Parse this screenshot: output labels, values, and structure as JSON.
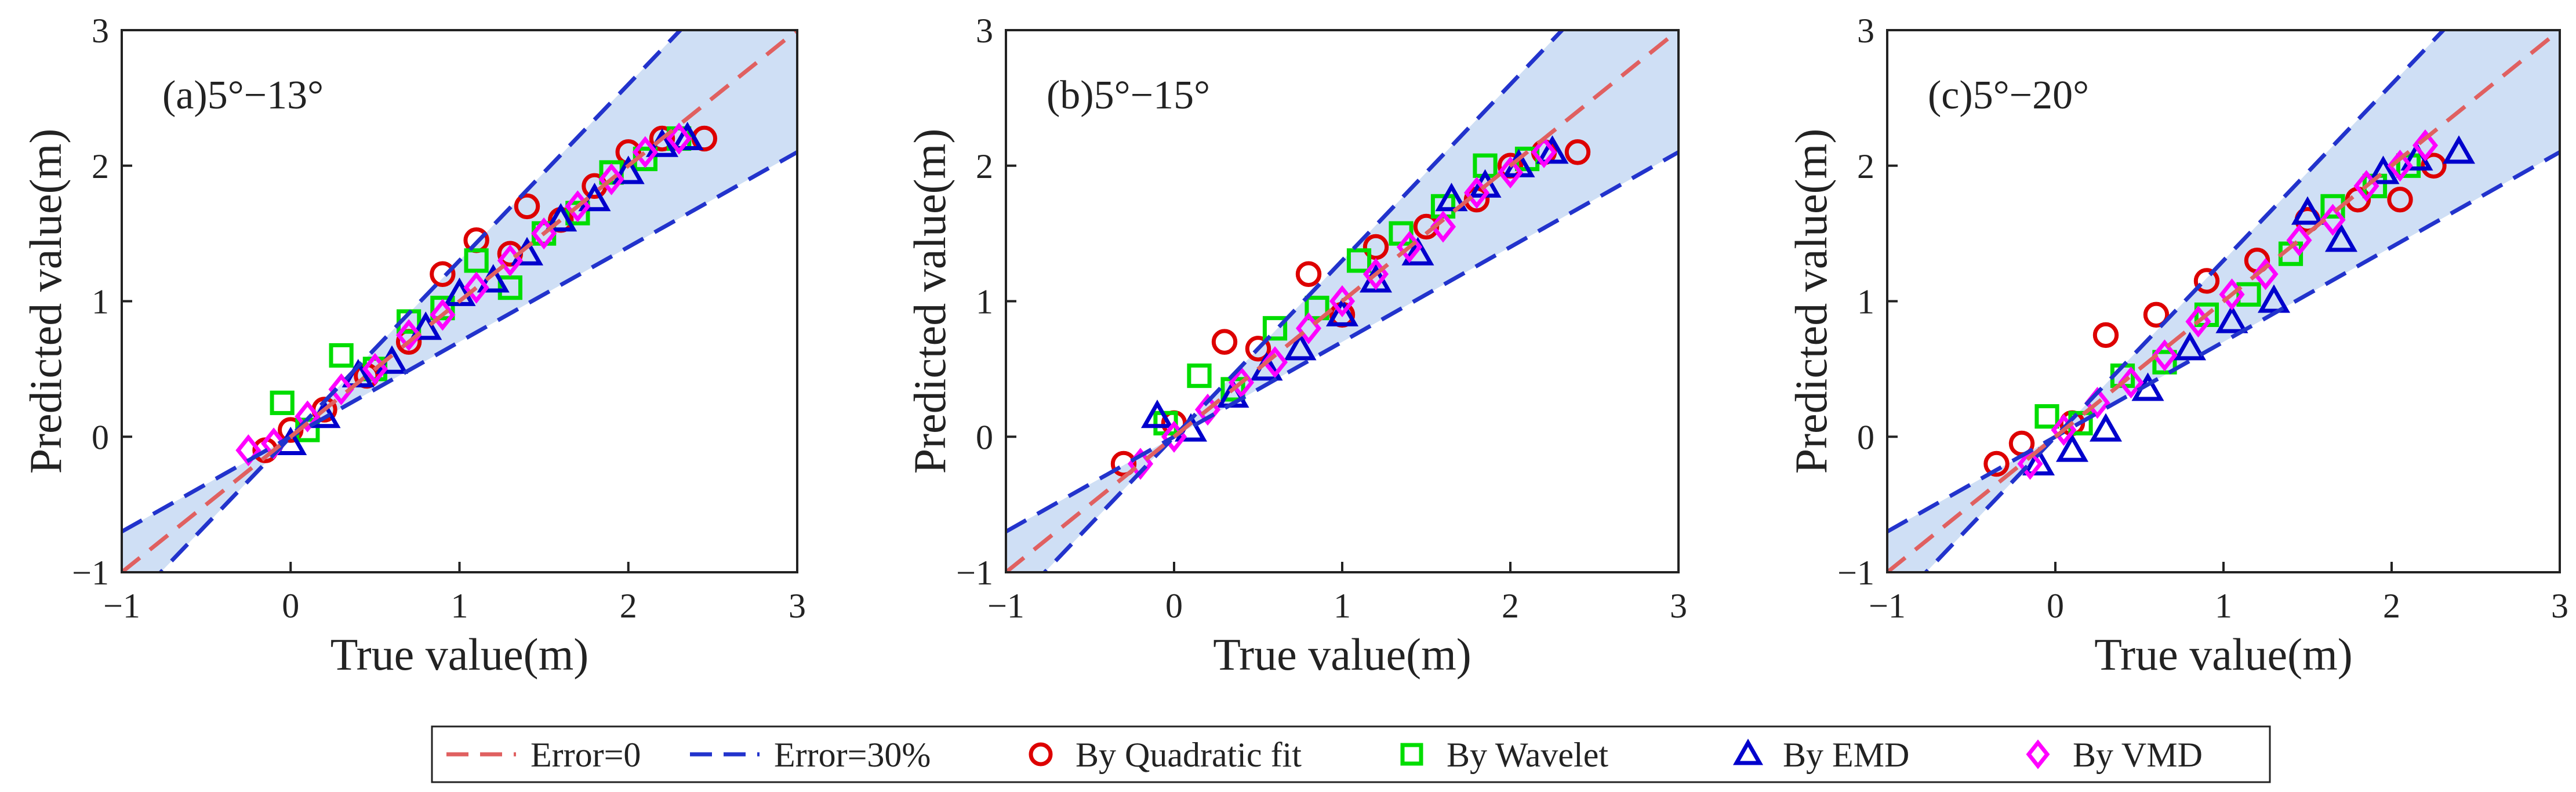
{
  "legend": [
    {
      "key": "error0",
      "label": "Error=0",
      "kind": "line",
      "color": "#e06060",
      "dash": true
    },
    {
      "key": "error30",
      "label": "Error=30%",
      "kind": "line",
      "color": "#2233cc",
      "dash": true
    },
    {
      "key": "quadratic",
      "label": "By Quadratic fit",
      "kind": "circle",
      "color": "#dd0000"
    },
    {
      "key": "wavelet",
      "label": "By Wavelet",
      "kind": "square",
      "color": "#00dd00"
    },
    {
      "key": "emd",
      "label": "By EMD",
      "kind": "triangle",
      "color": "#0000cc"
    },
    {
      "key": "vmd",
      "label": "By VMD",
      "kind": "diamond",
      "color": "#ff00ff"
    }
  ],
  "colors": {
    "band_fill": "#cfdff5",
    "axis": "#222222"
  },
  "chart_data": [
    {
      "type": "scatter",
      "title": "(a)5°−13°",
      "xlabel": "True value(m)",
      "ylabel": "Predicted value(m)",
      "xlim": [
        -1,
        3
      ],
      "ylim": [
        -1,
        3
      ],
      "xticks": [
        "−1",
        "0",
        "1",
        "2",
        "3"
      ],
      "yticks": [
        "−1",
        "0",
        "1",
        "2",
        "3"
      ],
      "reference_lines": [
        {
          "name": "Error=0",
          "slope": 1.0
        },
        {
          "name": "Error=30% upper",
          "slope": 1.3
        },
        {
          "name": "Error=30% lower",
          "slope": 0.7
        }
      ],
      "series": [
        {
          "key": "quadratic",
          "name": "By Quadratic fit",
          "x": [
            -0.15,
            0.0,
            0.2,
            0.45,
            0.7,
            0.9,
            1.1,
            1.3,
            1.4,
            1.6,
            1.8,
            2.0,
            2.2,
            2.45
          ],
          "y": [
            -0.1,
            0.05,
            0.2,
            0.45,
            0.7,
            1.2,
            1.45,
            1.35,
            1.7,
            1.6,
            1.85,
            2.1,
            2.2,
            2.2
          ]
        },
        {
          "key": "wavelet",
          "name": "By Wavelet",
          "x": [
            -0.05,
            0.1,
            0.3,
            0.5,
            0.7,
            0.9,
            1.1,
            1.3,
            1.5,
            1.7,
            1.9,
            2.1,
            2.3
          ],
          "y": [
            0.25,
            0.05,
            0.6,
            0.5,
            0.85,
            0.95,
            1.3,
            1.1,
            1.5,
            1.65,
            1.95,
            2.05,
            2.2
          ]
        },
        {
          "key": "emd",
          "name": "By EMD",
          "x": [
            0.0,
            0.2,
            0.4,
            0.6,
            0.8,
            1.0,
            1.2,
            1.4,
            1.6,
            1.8,
            2.0,
            2.2,
            2.35
          ],
          "y": [
            -0.05,
            0.15,
            0.45,
            0.55,
            0.8,
            1.05,
            1.15,
            1.35,
            1.6,
            1.75,
            1.95,
            2.15,
            2.2
          ]
        },
        {
          "key": "vmd",
          "name": "By VMD",
          "x": [
            -0.25,
            -0.1,
            0.1,
            0.3,
            0.5,
            0.7,
            0.9,
            1.1,
            1.3,
            1.5,
            1.7,
            1.9,
            2.1,
            2.3
          ],
          "y": [
            -0.1,
            -0.05,
            0.15,
            0.35,
            0.5,
            0.75,
            0.9,
            1.1,
            1.3,
            1.5,
            1.7,
            1.9,
            2.1,
            2.2
          ]
        }
      ]
    },
    {
      "type": "scatter",
      "title": "(b)5°−15°",
      "xlabel": "True value(m)",
      "ylabel": "Predicted value(m)",
      "xlim": [
        -1,
        3
      ],
      "ylim": [
        -1,
        3
      ],
      "xticks": [
        "−1",
        "0",
        "1",
        "2",
        "3"
      ],
      "yticks": [
        "−1",
        "0",
        "1",
        "2",
        "3"
      ],
      "reference_lines": [
        {
          "name": "Error=0",
          "slope": 1.0
        },
        {
          "name": "Error=30% upper",
          "slope": 1.3
        },
        {
          "name": "Error=30% lower",
          "slope": 0.7
        }
      ],
      "series": [
        {
          "key": "quadratic",
          "name": "By Quadratic fit",
          "x": [
            -0.3,
            0.0,
            0.3,
            0.5,
            0.8,
            1.0,
            1.2,
            1.5,
            1.8,
            2.0,
            2.2,
            2.4
          ],
          "y": [
            -0.2,
            0.1,
            0.7,
            0.65,
            1.2,
            0.9,
            1.4,
            1.55,
            1.75,
            2.0,
            2.1,
            2.1
          ]
        },
        {
          "key": "wavelet",
          "name": "By Wavelet",
          "x": [
            -0.05,
            0.15,
            0.35,
            0.6,
            0.85,
            1.1,
            1.35,
            1.6,
            1.85,
            2.1
          ],
          "y": [
            0.1,
            0.45,
            0.35,
            0.8,
            0.95,
            1.3,
            1.5,
            1.7,
            2.0,
            2.05
          ]
        },
        {
          "key": "emd",
          "name": "By EMD",
          "x": [
            -0.1,
            0.1,
            0.35,
            0.55,
            0.75,
            1.0,
            1.2,
            1.45,
            1.65,
            1.85,
            2.05,
            2.25
          ],
          "y": [
            0.15,
            0.05,
            0.3,
            0.5,
            0.65,
            0.9,
            1.15,
            1.35,
            1.75,
            1.85,
            2.0,
            2.1
          ]
        },
        {
          "key": "vmd",
          "name": "By VMD",
          "x": [
            -0.2,
            0.0,
            0.2,
            0.4,
            0.6,
            0.8,
            1.0,
            1.2,
            1.4,
            1.6,
            1.8,
            2.0,
            2.2
          ],
          "y": [
            -0.2,
            0.0,
            0.2,
            0.4,
            0.55,
            0.8,
            1.0,
            1.2,
            1.4,
            1.55,
            1.8,
            1.95,
            2.1
          ]
        }
      ]
    },
    {
      "type": "scatter",
      "title": "(c)5°−20°",
      "xlabel": "True value(m)",
      "ylabel": "Predicted value(m)",
      "xlim": [
        -1,
        3
      ],
      "ylim": [
        -1,
        3
      ],
      "xticks": [
        "−1",
        "0",
        "1",
        "2",
        "3"
      ],
      "yticks": [
        "−1",
        "0",
        "1",
        "2",
        "3"
      ],
      "reference_lines": [
        {
          "name": "Error=0",
          "slope": 1.0
        },
        {
          "name": "Error=30% upper",
          "slope": 1.3
        },
        {
          "name": "Error=30% lower",
          "slope": 0.7
        }
      ],
      "series": [
        {
          "key": "quadratic",
          "name": "By Quadratic fit",
          "x": [
            -0.35,
            -0.2,
            0.1,
            0.3,
            0.6,
            0.9,
            1.2,
            1.5,
            1.8,
            2.05,
            2.25
          ],
          "y": [
            -0.2,
            -0.05,
            0.1,
            0.75,
            0.9,
            1.15,
            1.3,
            1.6,
            1.75,
            1.75,
            2.0
          ]
        },
        {
          "key": "wavelet",
          "name": "By Wavelet",
          "x": [
            -0.05,
            0.15,
            0.4,
            0.65,
            0.9,
            1.15,
            1.4,
            1.65,
            1.9,
            2.1
          ],
          "y": [
            0.15,
            0.1,
            0.45,
            0.55,
            0.9,
            1.05,
            1.35,
            1.7,
            1.85,
            2.0
          ]
        },
        {
          "key": "emd",
          "name": "By EMD",
          "x": [
            -0.1,
            0.1,
            0.3,
            0.55,
            0.8,
            1.05,
            1.3,
            1.5,
            1.7,
            1.95,
            2.15,
            2.4
          ],
          "y": [
            -0.2,
            -0.1,
            0.05,
            0.35,
            0.65,
            0.85,
            1.0,
            1.65,
            1.45,
            1.95,
            2.05,
            2.1
          ]
        },
        {
          "key": "vmd",
          "name": "By VMD",
          "x": [
            -0.15,
            0.05,
            0.25,
            0.45,
            0.65,
            0.85,
            1.05,
            1.25,
            1.45,
            1.65,
            1.85,
            2.05,
            2.2
          ],
          "y": [
            -0.2,
            0.05,
            0.25,
            0.4,
            0.6,
            0.85,
            1.05,
            1.2,
            1.45,
            1.6,
            1.85,
            2.0,
            2.15
          ]
        }
      ]
    }
  ]
}
